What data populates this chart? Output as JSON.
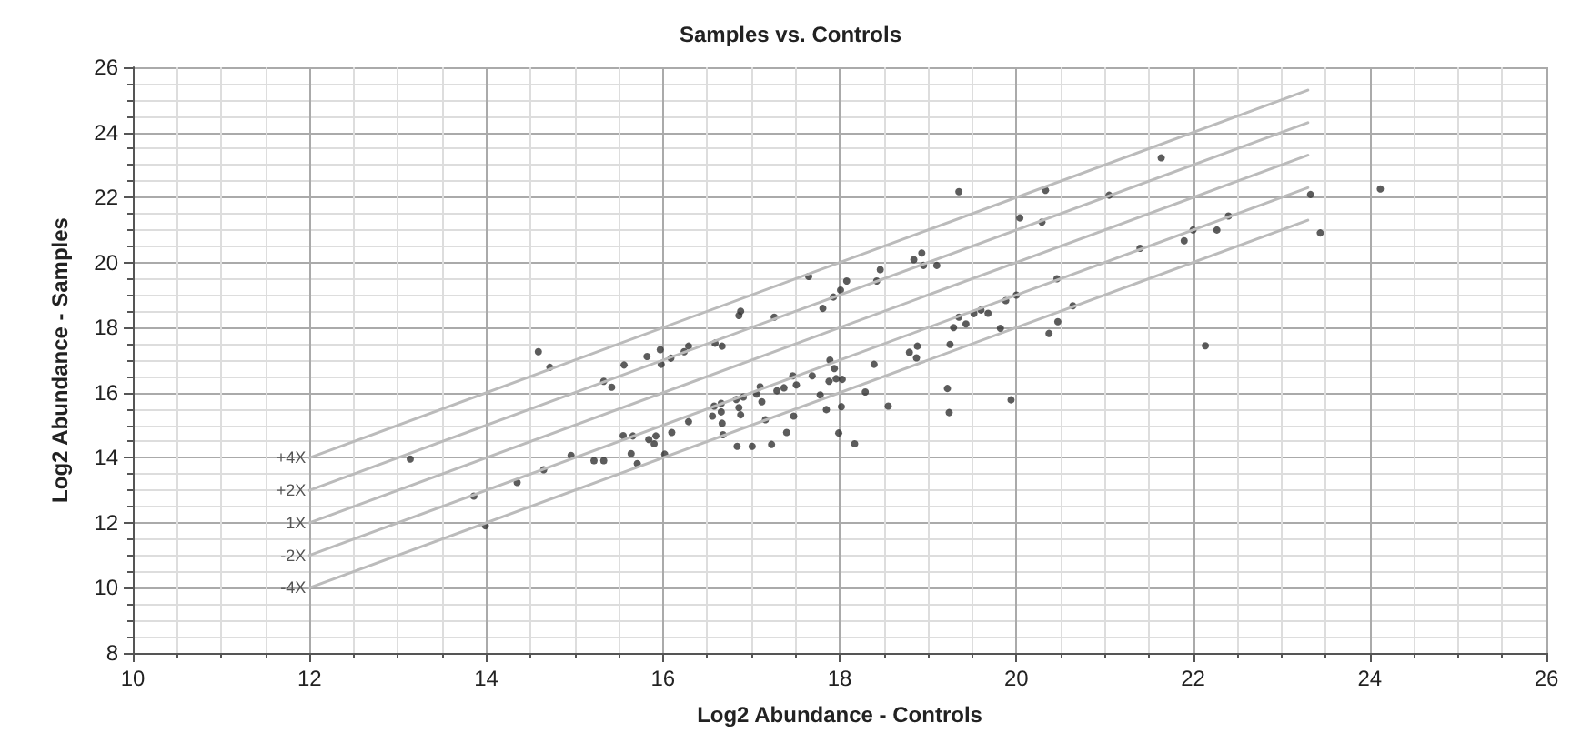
{
  "chart_data": {
    "type": "scatter",
    "title": "Samples vs. Controls",
    "xlabel": "Log2 Abundance - Controls",
    "ylabel": "Log2 Abundance - Samples",
    "xlim": [
      10,
      26
    ],
    "xticks": [
      10,
      12,
      14,
      16,
      18,
      20,
      22,
      24,
      26
    ],
    "ylim": [
      8,
      26
    ],
    "yticks": [
      8,
      10,
      12,
      14,
      16,
      18,
      20,
      22,
      24,
      26
    ],
    "grid": true,
    "legend": false,
    "series": [
      {
        "type": "line",
        "marker": "none",
        "name": "+4X",
        "color": "#bbbbbb",
        "x": [
          12,
          23.3
        ],
        "values": [
          14,
          25.3
        ]
      },
      {
        "type": "line",
        "marker": "none",
        "name": "+2X",
        "color": "#bbbbbb",
        "x": [
          12,
          23.3
        ],
        "values": [
          13,
          24.3
        ]
      },
      {
        "type": "line",
        "marker": "none",
        "name": "1X",
        "color": "#bbbbbb",
        "x": [
          12,
          23.3
        ],
        "values": [
          12,
          23.3
        ]
      },
      {
        "type": "line",
        "marker": "none",
        "name": "-2X",
        "color": "#bbbbbb",
        "x": [
          12,
          23.3
        ],
        "values": [
          11,
          22.3
        ]
      },
      {
        "type": "line",
        "marker": "none",
        "name": "-4X",
        "color": "#bbbbbb",
        "x": [
          12,
          23.3
        ],
        "values": [
          10,
          21.3
        ]
      },
      {
        "marker": "circle",
        "color": "#333333",
        "x": [
          14.59,
          14.72,
          13.14,
          13.86,
          13.99,
          14.35,
          14.65,
          14.96,
          15.22,
          15.33,
          15.33,
          15.42,
          15.56,
          15.82,
          15.55,
          15.66,
          15.64,
          15.71,
          15.84,
          19.35,
          20.33,
          20.04,
          20.29,
          20.46,
          20.64,
          20.47,
          20.37,
          20.0,
          19.88,
          19.82,
          19.68,
          19.6,
          19.52,
          19.43,
          19.35,
          19.29,
          19.25,
          19.22,
          19.24,
          19.94,
          18.84,
          18.93,
          18.95,
          19.1,
          18.46,
          18.42,
          18.08,
          18.01,
          17.93,
          17.81,
          17.65,
          17.26,
          16.88,
          16.86,
          16.59,
          16.67,
          16.29,
          16.24,
          15.97,
          16.09,
          15.98,
          18.39,
          18.79,
          18.88,
          18.87,
          17.89,
          17.94,
          17.47,
          17.51,
          17.69,
          17.88,
          17.96,
          18.03,
          17.37,
          17.29,
          17.1,
          17.06,
          17.12,
          16.91,
          16.83,
          16.86,
          16.88,
          16.66,
          16.58,
          16.66,
          16.56,
          16.67,
          16.68,
          16.29,
          16.1,
          16.02,
          15.92,
          15.9,
          16.84,
          17.01,
          17.23,
          17.4,
          17.48,
          17.16,
          17.78,
          17.85,
          18.02,
          17.99,
          18.17,
          18.29,
          18.55,
          21.64,
          21.05,
          23.33,
          24.12,
          23.44,
          22.4,
          22.27,
          22.0,
          21.9,
          21.4,
          22.14
        ],
        "values": [
          17.26,
          16.78,
          13.96,
          12.82,
          11.91,
          13.24,
          13.63,
          14.07,
          13.91,
          13.91,
          16.35,
          16.17,
          16.85,
          17.11,
          14.68,
          14.67,
          14.13,
          13.82,
          14.56,
          22.18,
          22.22,
          21.37,
          21.24,
          19.5,
          18.67,
          18.18,
          17.82,
          19.0,
          18.83,
          17.98,
          18.44,
          18.54,
          18.43,
          18.11,
          18.32,
          18.0,
          17.48,
          16.13,
          15.39,
          15.78,
          20.09,
          20.29,
          19.91,
          19.91,
          19.78,
          19.43,
          19.43,
          19.15,
          18.94,
          18.59,
          19.57,
          18.32,
          18.5,
          18.37,
          17.52,
          17.43,
          17.43,
          17.26,
          17.32,
          17.06,
          16.87,
          16.87,
          17.24,
          17.43,
          17.07,
          17.0,
          16.74,
          16.52,
          16.24,
          16.52,
          16.35,
          16.43,
          16.41,
          16.15,
          16.06,
          16.18,
          15.96,
          15.72,
          15.87,
          15.79,
          15.54,
          15.32,
          15.67,
          15.59,
          15.41,
          15.28,
          15.06,
          14.71,
          15.11,
          14.78,
          14.11,
          14.67,
          14.43,
          14.35,
          14.35,
          14.41,
          14.78,
          15.28,
          15.17,
          15.93,
          15.48,
          15.57,
          14.76,
          14.43,
          16.02,
          15.59,
          23.22,
          22.07,
          22.09,
          22.26,
          20.91,
          21.43,
          21.0,
          21.0,
          20.67,
          20.44,
          17.44
        ]
      }
    ]
  }
}
